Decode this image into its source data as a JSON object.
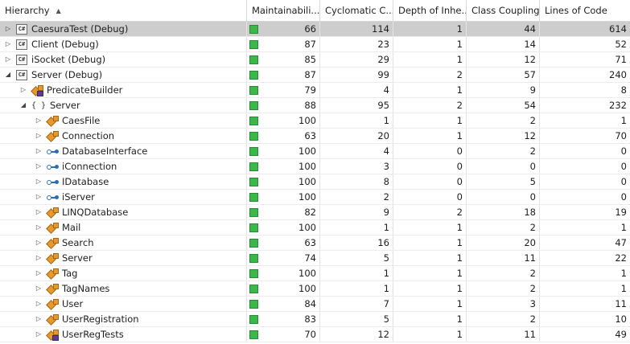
{
  "header": {
    "hierarchy": "Hierarchy",
    "maintainability": "Maintainabili...",
    "cyclomatic": "Cyclomatic C...",
    "depth": "Depth of Inhe...",
    "coupling": "Class Coupling",
    "loc": "Lines of Code"
  },
  "colors": {
    "mi_good": "#3cb84a",
    "selected_row": "#cdcdcd"
  },
  "rows": [
    {
      "level": 0,
      "expander": "collapsed",
      "icon": "project-icon",
      "name": "CaesuraTest (Debug)",
      "mi": "66",
      "cc": "114",
      "di": "1",
      "cl": "44",
      "loc": "614",
      "selected": true
    },
    {
      "level": 0,
      "expander": "collapsed",
      "icon": "project-icon",
      "name": "Client (Debug)",
      "mi": "87",
      "cc": "23",
      "di": "1",
      "cl": "14",
      "loc": "52"
    },
    {
      "level": 0,
      "expander": "collapsed",
      "icon": "project-icon",
      "name": "iSocket (Debug)",
      "mi": "85",
      "cc": "29",
      "di": "1",
      "cl": "12",
      "loc": "71"
    },
    {
      "level": 0,
      "expander": "expanded",
      "icon": "project-icon",
      "name": "Server (Debug)",
      "mi": "87",
      "cc": "99",
      "di": "2",
      "cl": "57",
      "loc": "240"
    },
    {
      "level": 1,
      "expander": "collapsed",
      "icon": "class-internal-icon",
      "name": "PredicateBuilder",
      "mi": "79",
      "cc": "4",
      "di": "1",
      "cl": "9",
      "loc": "8"
    },
    {
      "level": 1,
      "expander": "expanded",
      "icon": "namespace-icon",
      "name": "Server",
      "mi": "88",
      "cc": "95",
      "di": "2",
      "cl": "54",
      "loc": "232"
    },
    {
      "level": 2,
      "expander": "collapsed",
      "icon": "class-icon",
      "name": "CaesFile",
      "mi": "100",
      "cc": "1",
      "di": "1",
      "cl": "2",
      "loc": "1"
    },
    {
      "level": 2,
      "expander": "collapsed",
      "icon": "class-icon",
      "name": "Connection",
      "mi": "63",
      "cc": "20",
      "di": "1",
      "cl": "12",
      "loc": "70"
    },
    {
      "level": 2,
      "expander": "collapsed",
      "icon": "interface-icon",
      "name": "DatabaseInterface",
      "mi": "100",
      "cc": "4",
      "di": "0",
      "cl": "2",
      "loc": "0"
    },
    {
      "level": 2,
      "expander": "collapsed",
      "icon": "interface-icon",
      "name": "iConnection",
      "mi": "100",
      "cc": "3",
      "di": "0",
      "cl": "0",
      "loc": "0"
    },
    {
      "level": 2,
      "expander": "collapsed",
      "icon": "interface-icon",
      "name": "IDatabase",
      "mi": "100",
      "cc": "8",
      "di": "0",
      "cl": "5",
      "loc": "0"
    },
    {
      "level": 2,
      "expander": "collapsed",
      "icon": "interface-icon",
      "name": "iServer",
      "mi": "100",
      "cc": "2",
      "di": "0",
      "cl": "0",
      "loc": "0"
    },
    {
      "level": 2,
      "expander": "collapsed",
      "icon": "class-icon",
      "name": "LINQDatabase",
      "mi": "82",
      "cc": "9",
      "di": "2",
      "cl": "18",
      "loc": "19"
    },
    {
      "level": 2,
      "expander": "collapsed",
      "icon": "class-icon",
      "name": "Mail",
      "mi": "100",
      "cc": "1",
      "di": "1",
      "cl": "2",
      "loc": "1"
    },
    {
      "level": 2,
      "expander": "collapsed",
      "icon": "class-icon",
      "name": "Search",
      "mi": "63",
      "cc": "16",
      "di": "1",
      "cl": "20",
      "loc": "47"
    },
    {
      "level": 2,
      "expander": "collapsed",
      "icon": "class-icon",
      "name": "Server",
      "mi": "74",
      "cc": "5",
      "di": "1",
      "cl": "11",
      "loc": "22"
    },
    {
      "level": 2,
      "expander": "collapsed",
      "icon": "class-icon",
      "name": "Tag",
      "mi": "100",
      "cc": "1",
      "di": "1",
      "cl": "2",
      "loc": "1"
    },
    {
      "level": 2,
      "expander": "collapsed",
      "icon": "class-icon",
      "name": "TagNames",
      "mi": "100",
      "cc": "1",
      "di": "1",
      "cl": "2",
      "loc": "1"
    },
    {
      "level": 2,
      "expander": "collapsed",
      "icon": "class-icon",
      "name": "User",
      "mi": "84",
      "cc": "7",
      "di": "1",
      "cl": "3",
      "loc": "11"
    },
    {
      "level": 2,
      "expander": "collapsed",
      "icon": "class-icon",
      "name": "UserRegistration",
      "mi": "83",
      "cc": "5",
      "di": "1",
      "cl": "2",
      "loc": "10"
    },
    {
      "level": 2,
      "expander": "collapsed",
      "icon": "class-internal-icon",
      "name": "UserRegTests",
      "mi": "70",
      "cc": "12",
      "di": "1",
      "cl": "11",
      "loc": "49"
    }
  ]
}
